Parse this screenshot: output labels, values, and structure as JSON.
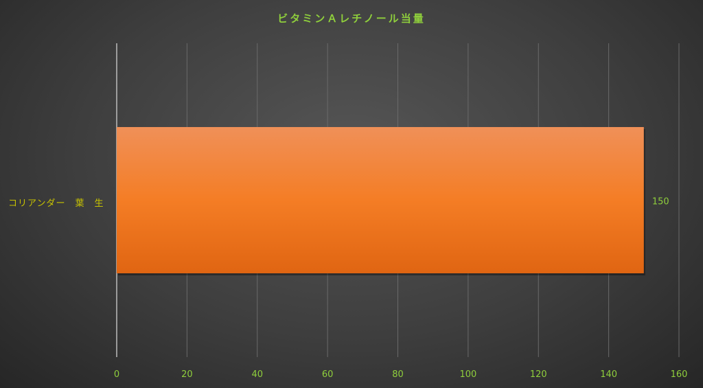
{
  "chart_data": {
    "type": "bar",
    "orientation": "horizontal",
    "title": "ビタミンＡレチノール当量",
    "categories": [
      "コリアンダー　葉　生"
    ],
    "values": [
      150
    ],
    "data_labels": [
      "150"
    ],
    "xlim": [
      0,
      160
    ],
    "x_ticks": [
      0,
      20,
      40,
      60,
      80,
      100,
      120,
      140,
      160
    ],
    "grid": "vertical",
    "legend": "none",
    "colors": {
      "bar_top": "#f09058",
      "bar_mid": "#f47d25",
      "bar_bottom": "#e06512",
      "title": "#8fcf3c",
      "tick_labels": "#8fcf3c",
      "category_label": "#c9c400",
      "data_label": "#8fcf3c"
    }
  }
}
